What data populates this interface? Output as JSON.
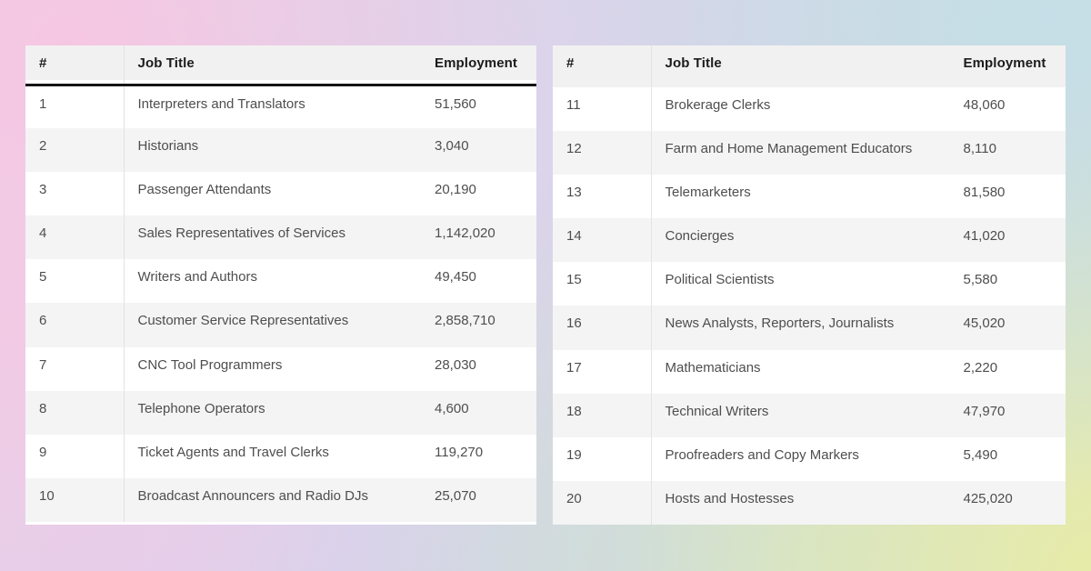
{
  "chart_data": {
    "type": "table",
    "title": "",
    "tables": [
      {
        "id": "jobs-ranks-1-10",
        "columns": [
          "#",
          "Job Title",
          "Employment"
        ],
        "rows": [
          [
            "1",
            "Interpreters and Translators",
            "51,560"
          ],
          [
            "2",
            "Historians",
            "3,040"
          ],
          [
            "3",
            "Passenger Attendants",
            "20,190"
          ],
          [
            "4",
            "Sales Representatives of Services",
            "1,142,020"
          ],
          [
            "5",
            "Writers and Authors",
            "49,450"
          ],
          [
            "6",
            "Customer Service Representatives",
            "2,858,710"
          ],
          [
            "7",
            "CNC Tool Programmers",
            "28,030"
          ],
          [
            "8",
            "Telephone Operators",
            "4,600"
          ],
          [
            "9",
            "Ticket Agents and Travel Clerks",
            "119,270"
          ],
          [
            "10",
            "Broadcast Announcers and Radio DJs",
            "25,070"
          ]
        ]
      },
      {
        "id": "jobs-ranks-11-20",
        "columns": [
          "#",
          "Job Title",
          "Employment"
        ],
        "rows": [
          [
            "11",
            "Brokerage Clerks",
            "48,060"
          ],
          [
            "12",
            "Farm and Home Management Educators",
            "8,110"
          ],
          [
            "13",
            "Telemarketers",
            "81,580"
          ],
          [
            "14",
            "Concierges",
            "41,020"
          ],
          [
            "15",
            "Political Scientists",
            "5,580"
          ],
          [
            "16",
            "News Analysts, Reporters, Journalists",
            "45,020"
          ],
          [
            "17",
            "Mathematicians",
            "2,220"
          ],
          [
            "18",
            "Technical Writers",
            "47,970"
          ],
          [
            "19",
            "Proofreaders and Copy Markers",
            "5,490"
          ],
          [
            "20",
            "Hosts and Hostesses",
            "425,020"
          ]
        ]
      }
    ]
  },
  "colors": {
    "card_bg": "#ffffff",
    "header_bg": "#f2f1f1",
    "alt_row_bg": "#f4f4f4",
    "header_text": "#1b1b1b",
    "body_text": "#4e4e4e",
    "header_rule": "#141414",
    "column_divider": "#e3e3e3",
    "bg_top_left_pink": "#f5c6e2",
    "bg_top_lavender": "#ddd3ea",
    "bg_top_right_blue": "#c5dfe7",
    "bg_bottom_left_lilac": "#e5ccEB",
    "bg_bottom_right_green": "#e8eca6"
  }
}
